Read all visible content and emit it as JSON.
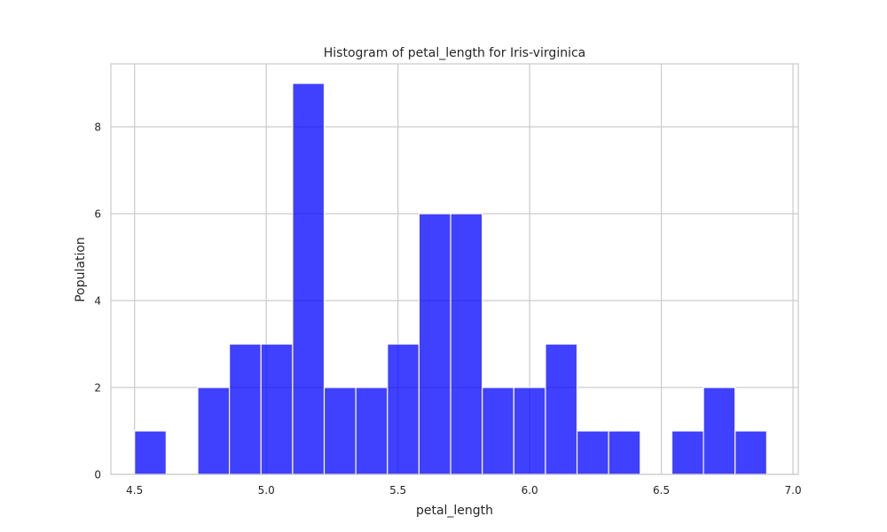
{
  "chart_data": {
    "type": "bar",
    "title": "Histogram of petal_length for Iris-virginica",
    "xlabel": "petal_length",
    "ylabel": "Population",
    "xlim": [
      4.41,
      7.02
    ],
    "ylim": [
      0,
      9.45
    ],
    "xticks": [
      4.5,
      5.0,
      5.5,
      6.0,
      6.5,
      7.0
    ],
    "xtick_labels": [
      "4.5",
      "5.0",
      "5.5",
      "6.0",
      "6.5",
      "7.0"
    ],
    "yticks": [
      0,
      2,
      4,
      6,
      8
    ],
    "ytick_labels": [
      "0",
      "2",
      "4",
      "6",
      "8"
    ],
    "grid": true,
    "bar_color": "#0000ff",
    "bar_opacity": 0.75,
    "bins": [
      {
        "x0": 4.5,
        "x1": 4.62,
        "count": 1
      },
      {
        "x0": 4.62,
        "x1": 4.74,
        "count": 0
      },
      {
        "x0": 4.74,
        "x1": 4.86,
        "count": 2
      },
      {
        "x0": 4.86,
        "x1": 4.98,
        "count": 3
      },
      {
        "x0": 4.98,
        "x1": 5.1,
        "count": 3
      },
      {
        "x0": 5.1,
        "x1": 5.22,
        "count": 9
      },
      {
        "x0": 5.22,
        "x1": 5.34,
        "count": 2
      },
      {
        "x0": 5.34,
        "x1": 5.46,
        "count": 2
      },
      {
        "x0": 5.46,
        "x1": 5.58,
        "count": 3
      },
      {
        "x0": 5.58,
        "x1": 5.7,
        "count": 6
      },
      {
        "x0": 5.7,
        "x1": 5.82,
        "count": 6
      },
      {
        "x0": 5.82,
        "x1": 5.94,
        "count": 2
      },
      {
        "x0": 5.94,
        "x1": 6.06,
        "count": 2
      },
      {
        "x0": 6.06,
        "x1": 6.18,
        "count": 3
      },
      {
        "x0": 6.18,
        "x1": 6.3,
        "count": 1
      },
      {
        "x0": 6.3,
        "x1": 6.42,
        "count": 1
      },
      {
        "x0": 6.42,
        "x1": 6.54,
        "count": 0
      },
      {
        "x0": 6.54,
        "x1": 6.66,
        "count": 1
      },
      {
        "x0": 6.66,
        "x1": 6.78,
        "count": 2
      },
      {
        "x0": 6.78,
        "x1": 6.9,
        "count": 1
      }
    ]
  }
}
